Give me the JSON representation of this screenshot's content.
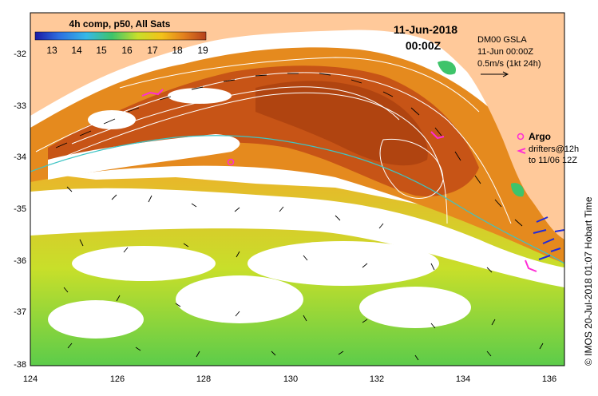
{
  "map": {
    "colorbar_title": "4h comp, p50, All Sats",
    "colorbar_ticks": [
      "13",
      "14",
      "15",
      "16",
      "17",
      "18",
      "19"
    ],
    "colorbar_stops": [
      "#1a1aa6",
      "#2d6fe0",
      "#35b8e8",
      "#3ec46a",
      "#c8df2a",
      "#f3c21a",
      "#e3801c",
      "#b5401c"
    ],
    "date": "11-Jun-2018",
    "time": "00:00Z",
    "legend": {
      "product": "DM00 GSLA",
      "valid_time": "11-Jun 00:00Z",
      "scale_label": "0.5m/s (1kt 24h)"
    },
    "argo_label": "Argo",
    "drifters_line1": "drifters@12h",
    "drifters_line2": "to 11/06 12Z",
    "credit": "© IMOS 20-Jul-2018 01:07 Hobart Time",
    "lat_labels": [
      "-32",
      "-33",
      "-34",
      "-35",
      "-36",
      "-37",
      "-38"
    ],
    "lon_labels": [
      "124",
      "126",
      "128",
      "130",
      "132",
      "134",
      "136"
    ],
    "colors": {
      "land": "#ffc99a",
      "sst_warm": "#c75416",
      "sst_mid": "#e58a1e",
      "sst_cool": "#eab52a",
      "sst_green": "#8cd046",
      "contour": "#ffffff",
      "shelf": "#3ec4c4",
      "argo": "#ff2bd6",
      "drifter": "#1f2bdc"
    }
  }
}
